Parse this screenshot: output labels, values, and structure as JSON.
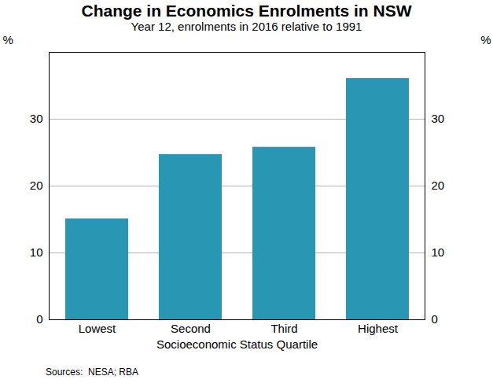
{
  "chart_data": {
    "type": "bar",
    "title": "Change in Economics Enrolments in NSW",
    "subtitle": "Year 12, enrolments in 2016 relative to 1991",
    "x_label": "Socioeconomic Status Quartile",
    "y_label": "%",
    "categories": [
      "Lowest",
      "Second",
      "Third",
      "Highest"
    ],
    "values": [
      15.1,
      24.7,
      25.8,
      36.1
    ],
    "color": "#2996b3",
    "ylim": [
      0,
      40
    ],
    "yticks": [
      0,
      10,
      20,
      30
    ],
    "grid": true,
    "source": "Sources:  NESA; RBA"
  }
}
